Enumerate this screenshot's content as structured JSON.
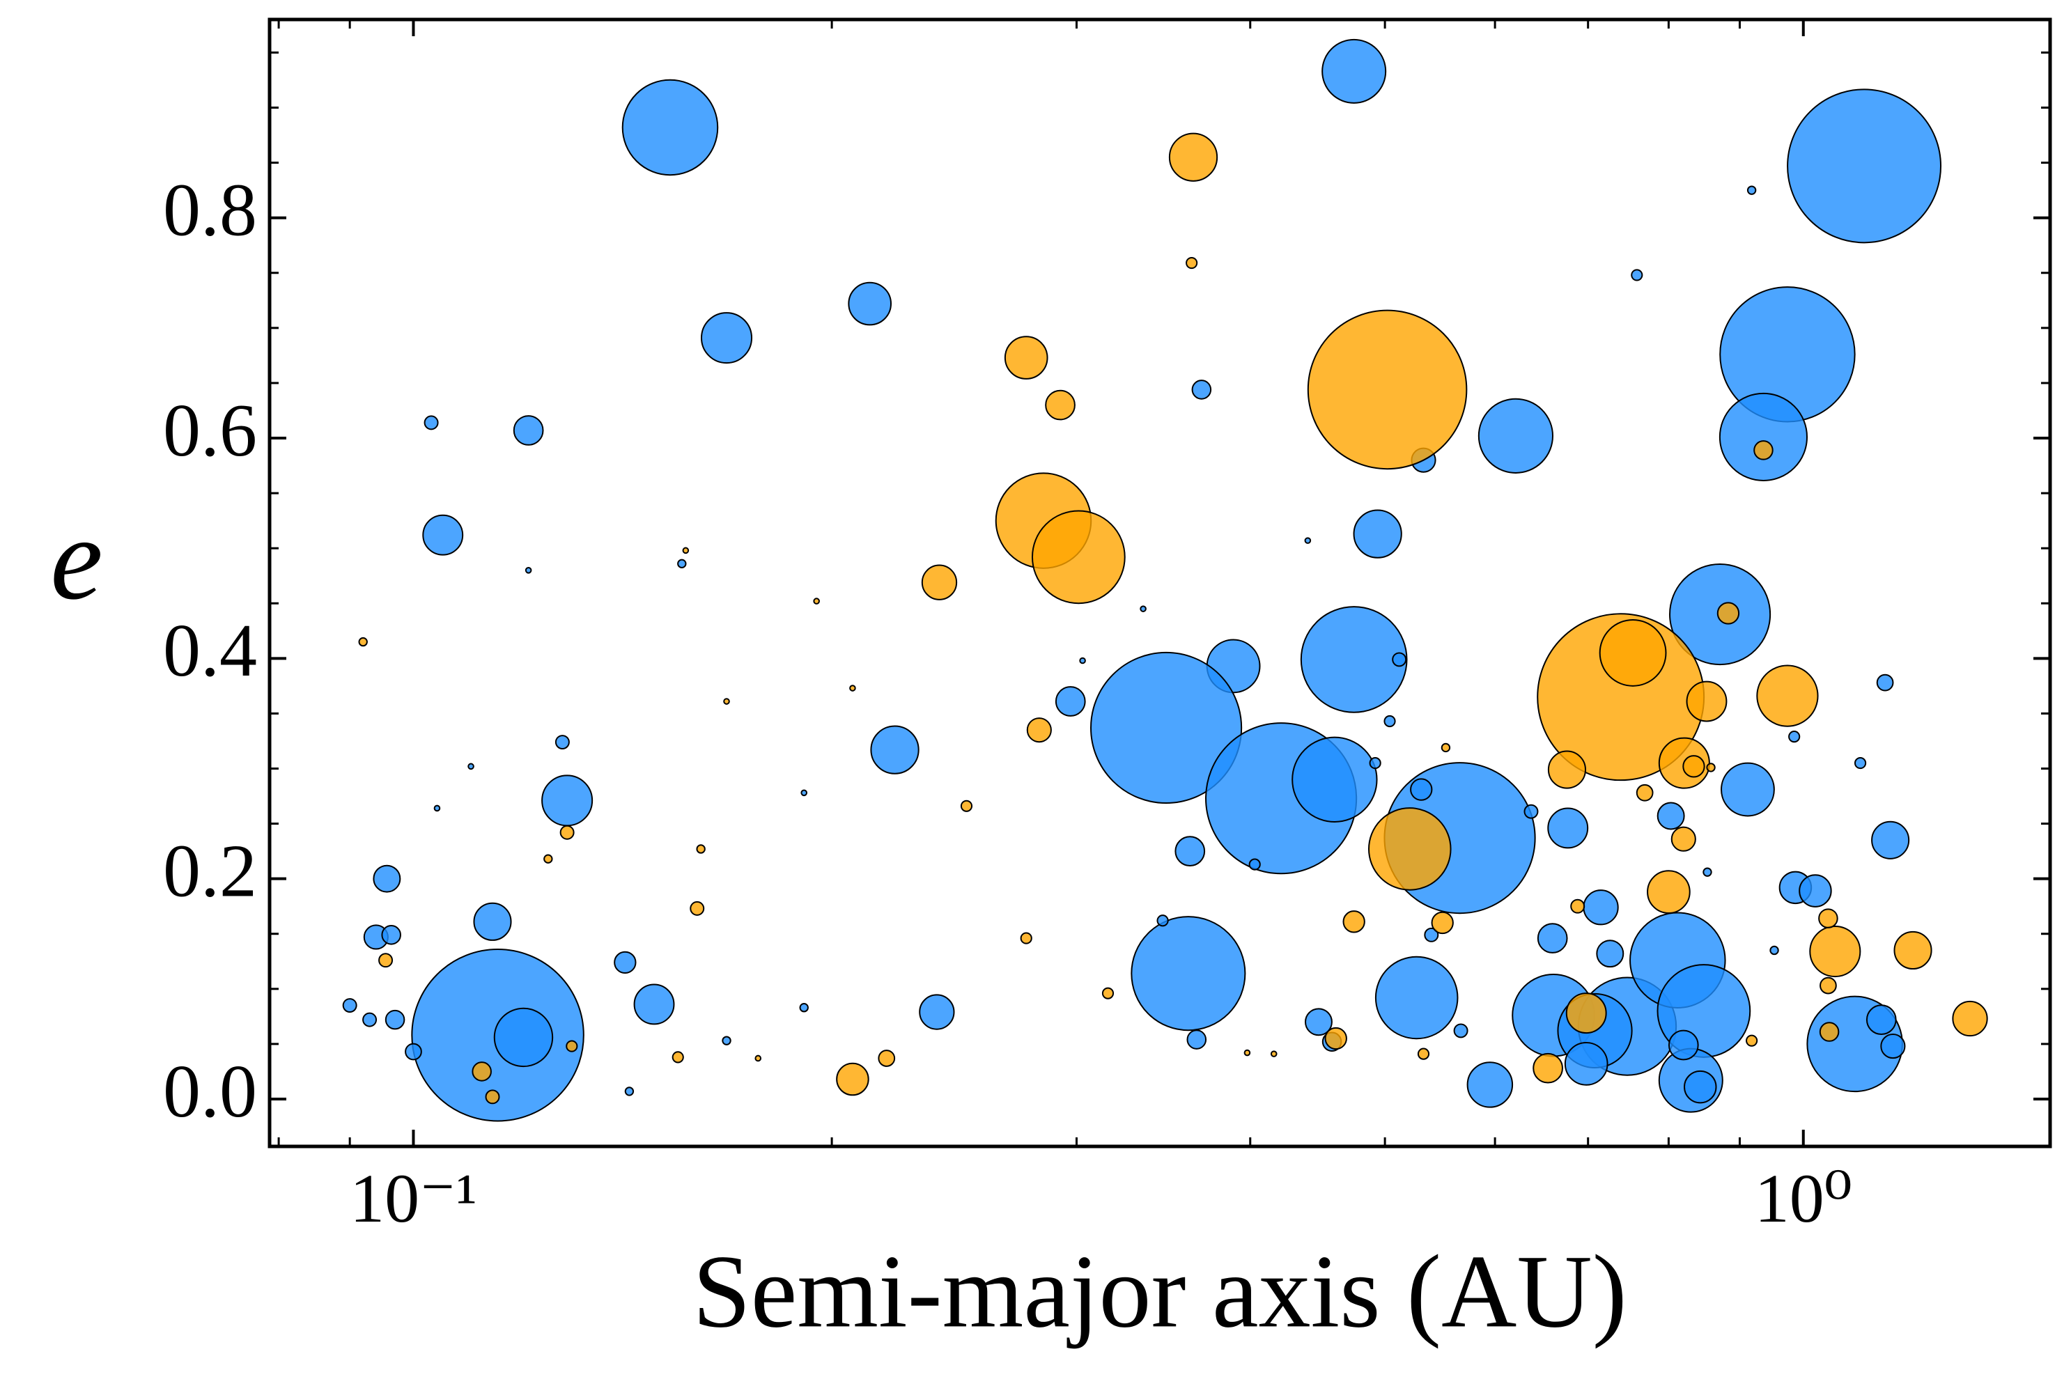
{
  "chart_data": {
    "type": "scatter",
    "xlabel": "Semi-major axis (AU)",
    "ylabel": "e",
    "xscale": "log",
    "xlim": [
      0.0788,
      1.505
    ],
    "ylim": [
      -0.043,
      0.98
    ],
    "xticks": [
      {
        "value": 0.1,
        "label": "10⁻¹"
      },
      {
        "value": 1,
        "label": "10⁰"
      }
    ],
    "xminorticks": [
      0.08,
      0.09,
      0.2,
      0.3,
      0.4,
      0.5,
      0.6,
      0.7,
      0.8,
      0.9
    ],
    "yticks": [
      {
        "value": 0,
        "label": "0.0"
      },
      0.2,
      0.4,
      0.6,
      0.8
    ],
    "yminorticks": [
      0.05,
      0.1,
      0.15,
      0.25,
      0.3,
      0.35,
      0.45,
      0.5,
      0.55,
      0.65,
      0.7,
      0.75,
      0.85,
      0.9,
      0.95
    ],
    "series": [
      {
        "color": "#1f8fff",
        "x": [
          0.153,
          0.475,
          1.106,
          0.168,
          0.213,
          0.974,
          0.936,
          0.621,
          0.121,
          0.103,
          0.105,
          0.369,
          0.533,
          0.494,
          0.871,
          0.759,
          0.918,
          0.475,
          0.389,
          0.348,
          0.421,
          0.46,
          0.566,
          0.297,
          0.222,
          0.129,
          0.361,
          0.527,
          0.115,
          0.12,
          0.114,
          0.0957,
          0.094,
          0.0964,
          0.142,
          0.149,
          0.238,
          0.097,
          0.1,
          0.09,
          0.093,
          0.128,
          0.661,
          0.595,
          0.747,
          0.812,
          0.848,
          0.708,
          0.83,
          1.089,
          0.677,
          0.912,
          0.987,
          1.02,
          1.155,
          1.138,
          0.715,
          0.726,
          0.66,
          0.698,
          0.82,
          0.803,
          0.843,
          0.448,
          0.366,
          0.362,
          0.531,
          0.458,
          0.567,
          0.637,
          1.145,
          1.099,
          1.16,
          0.512,
          0.504,
          0.492,
          0.156,
          0.121,
          0.191,
          0.168,
          0.143,
          0.191,
          0.403,
          0.346,
          0.54,
          0.985,
          0.953,
          0.853,
          0.44,
          0.335,
          0.303,
          0.11,
          0.104
        ],
        "y": [
          0.882,
          0.933,
          0.847,
          0.691,
          0.722,
          0.676,
          0.601,
          0.602,
          0.607,
          0.614,
          0.512,
          0.644,
          0.58,
          0.513,
          0.44,
          0.748,
          0.825,
          0.399,
          0.393,
          0.337,
          0.273,
          0.29,
          0.237,
          0.361,
          0.317,
          0.271,
          0.114,
          0.092,
          0.058,
          0.056,
          0.161,
          0.2,
          0.147,
          0.149,
          0.124,
          0.086,
          0.079,
          0.072,
          0.043,
          0.085,
          0.072,
          0.324,
          0.076,
          0.013,
          0.066,
          0.126,
          0.08,
          0.062,
          0.017,
          0.05,
          0.246,
          0.281,
          0.192,
          0.189,
          0.235,
          0.072,
          0.174,
          0.132,
          0.146,
          0.032,
          0.049,
          0.257,
          0.011,
          0.07,
          0.054,
          0.225,
          0.281,
          0.052,
          0.062,
          0.261,
          0.378,
          0.305,
          0.048,
          0.399,
          0.343,
          0.305,
          0.486,
          0.48,
          0.278,
          0.053,
          0.007,
          0.083,
          0.213,
          0.162,
          0.149,
          0.329,
          0.135,
          0.206,
          0.507,
          0.445,
          0.398,
          0.302,
          0.264
        ],
        "sizes": [
          36,
          24,
          58,
          19,
          16,
          51,
          33,
          28,
          11,
          5,
          15,
          7,
          9,
          18,
          38,
          4,
          3,
          40,
          20,
          57,
          57,
          32,
          57,
          11,
          18,
          19,
          43,
          31,
          65,
          22,
          14,
          10,
          9,
          7,
          8,
          15,
          13,
          7,
          6,
          5,
          5,
          5,
          31,
          17,
          37,
          36,
          35,
          28,
          24,
          36,
          15,
          20,
          12,
          12,
          14,
          11,
          13,
          10,
          11,
          16,
          11,
          10,
          12,
          10,
          7,
          11,
          8,
          7,
          5,
          5,
          6,
          4,
          9,
          5,
          4,
          4,
          3,
          2,
          2,
          3,
          3,
          3,
          4,
          4,
          5,
          4,
          3,
          3,
          2,
          2,
          2,
          2,
          2
        ]
      },
      {
        "color": "#ffa500",
        "x": [
          0.502,
          0.739,
          0.284,
          0.301,
          0.364,
          0.276,
          0.292,
          0.239,
          0.521,
          0.754,
          0.974,
          0.852,
          0.821,
          0.676,
          0.8,
          1.054,
          1.199,
          1.318,
          0.698,
          0.655,
          0.883,
          0.936,
          0.82,
          0.834,
          1.042,
          1.042,
          1.044,
          0.282,
          0.475,
          0.55,
          0.461,
          0.207,
          0.219,
          0.363,
          0.112,
          0.114,
          0.0955,
          0.129,
          0.13,
          0.092,
          0.16,
          0.155,
          0.276,
          0.25,
          0.316,
          0.533,
          0.688,
          0.918,
          0.769,
          0.161,
          0.125,
          0.553,
          0.195,
          0.157,
          0.207,
          0.168,
          0.398,
          0.416,
          0.177,
          0.858
        ],
        "y": [
          0.644,
          0.365,
          0.525,
          0.492,
          0.855,
          0.673,
          0.63,
          0.469,
          0.227,
          0.405,
          0.366,
          0.361,
          0.305,
          0.299,
          0.188,
          0.134,
          0.135,
          0.073,
          0.078,
          0.028,
          0.441,
          0.589,
          0.236,
          0.302,
          0.164,
          0.103,
          0.061,
          0.335,
          0.161,
          0.16,
          0.055,
          0.018,
          0.037,
          0.759,
          0.025,
          0.002,
          0.126,
          0.242,
          0.048,
          0.415,
          0.173,
          0.038,
          0.146,
          0.266,
          0.096,
          0.041,
          0.175,
          0.053,
          0.278,
          0.227,
          0.218,
          0.319,
          0.452,
          0.498,
          0.373,
          0.361,
          0.042,
          0.041,
          0.037,
          0.301
        ],
        "sizes": [
          60,
          63,
          36,
          35,
          18,
          16,
          11,
          13,
          31,
          25,
          23,
          15,
          19,
          14,
          16,
          19,
          14,
          13,
          15,
          11,
          8,
          7,
          9,
          8,
          7,
          6,
          7,
          9,
          8,
          8,
          8,
          12,
          6,
          4,
          7,
          5,
          5,
          5,
          4,
          3,
          5,
          4,
          4,
          4,
          4,
          4,
          5,
          4,
          6,
          3,
          3,
          3,
          2,
          2,
          2,
          2,
          2,
          2,
          2,
          3
        ]
      }
    ]
  }
}
